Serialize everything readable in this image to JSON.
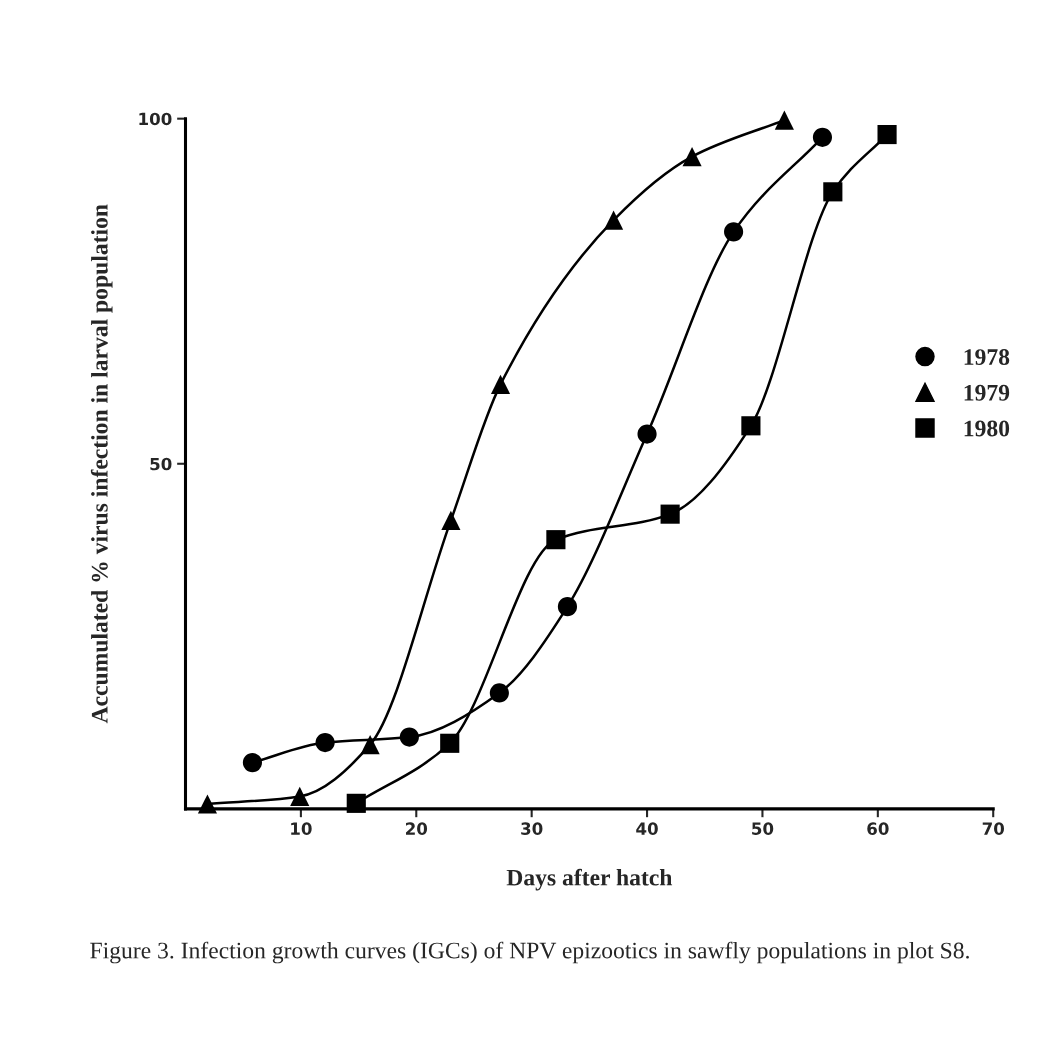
{
  "chart_data": {
    "type": "line",
    "xlabel": "Days after hatch",
    "ylabel": "Accumulated % virus infection in larval population",
    "xlim": [
      0,
      70
    ],
    "xticks": [
      10,
      20,
      30,
      40,
      50,
      60,
      70
    ],
    "ylim": [
      0,
      100
    ],
    "yticks": [
      50,
      100
    ],
    "grid": false,
    "legend": "right",
    "series": [
      {
        "name": "1978",
        "color": "#000000",
        "marker": "circle",
        "x": [
          5.8,
          12.1,
          19.4,
          27.2,
          33.1,
          40.0,
          47.5,
          55.2
        ],
        "values": [
          6.7,
          9.6,
          10.4,
          16.8,
          29.3,
          54.3,
          83.6,
          97.3
        ]
      },
      {
        "name": "1979",
        "color": "#000000",
        "marker": "triangle",
        "x": [
          1.9,
          9.9,
          16.0,
          23.0,
          27.3,
          37.1,
          43.9,
          51.9
        ],
        "values": [
          0.7,
          1.8,
          9.3,
          41.8,
          61.5,
          85.3,
          94.5,
          99.8
        ]
      },
      {
        "name": "1980",
        "color": "#000000",
        "marker": "square",
        "x": [
          14.8,
          22.9,
          32.1,
          42.0,
          49.0,
          56.1,
          60.8
        ],
        "values": [
          0.8,
          9.5,
          39.0,
          42.7,
          55.5,
          89.4,
          97.7
        ]
      }
    ],
    "annotations": [
      "Figure 3. Infection growth curves (IGCs) of NPV epizootics in sawfly populations in plot S8."
    ]
  }
}
